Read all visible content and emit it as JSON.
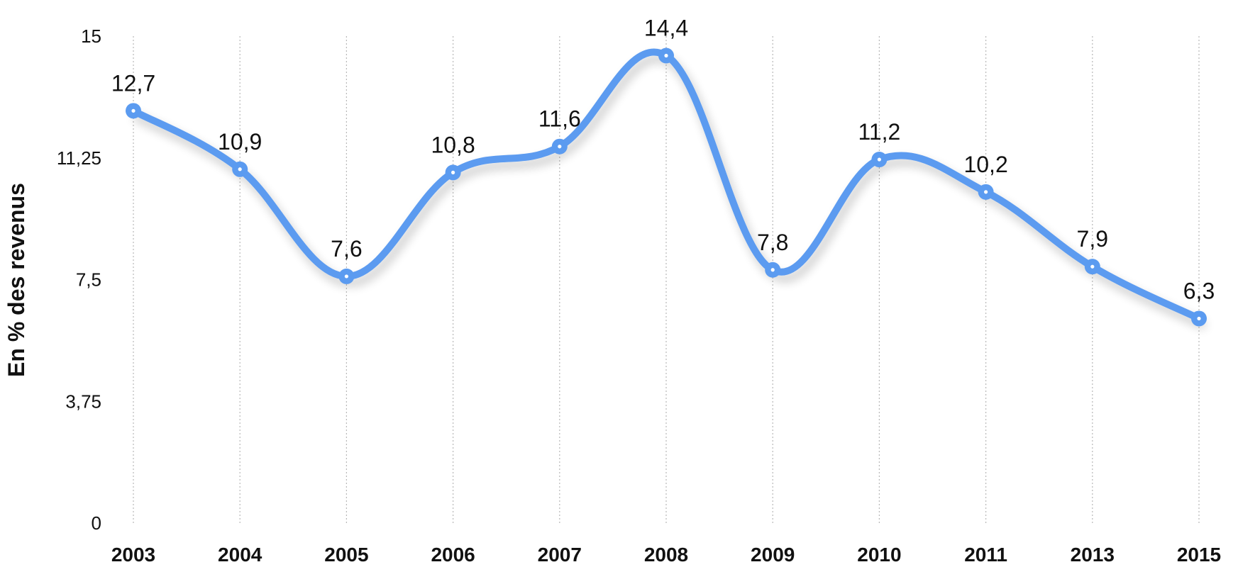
{
  "chart_data": {
    "type": "line",
    "title": "",
    "xlabel": "",
    "ylabel": "En % des revenus",
    "categories": [
      "2003",
      "2004",
      "2005",
      "2006",
      "2007",
      "2008",
      "2009",
      "2010",
      "2011",
      "2013",
      "2015"
    ],
    "series": [
      {
        "values": [
          12.7,
          10.9,
          7.6,
          10.8,
          11.6,
          14.4,
          7.8,
          11.2,
          10.2,
          7.9,
          6.3
        ],
        "data_labels": [
          "12,7",
          "10,9",
          "7,6",
          "10,8",
          "11,6",
          "14,4",
          "7,8",
          "11,2",
          "10,2",
          "7,9",
          "6,3"
        ],
        "color": "#5b9bf0"
      }
    ],
    "ylim": [
      0,
      15
    ],
    "yticks": [
      0,
      3.75,
      7.5,
      11.25,
      15
    ],
    "ytick_labels": [
      "0",
      "3,75",
      "7,5",
      "11,25",
      "15"
    ],
    "grid": "vertical dotted",
    "smooth": true,
    "legend": "none"
  }
}
